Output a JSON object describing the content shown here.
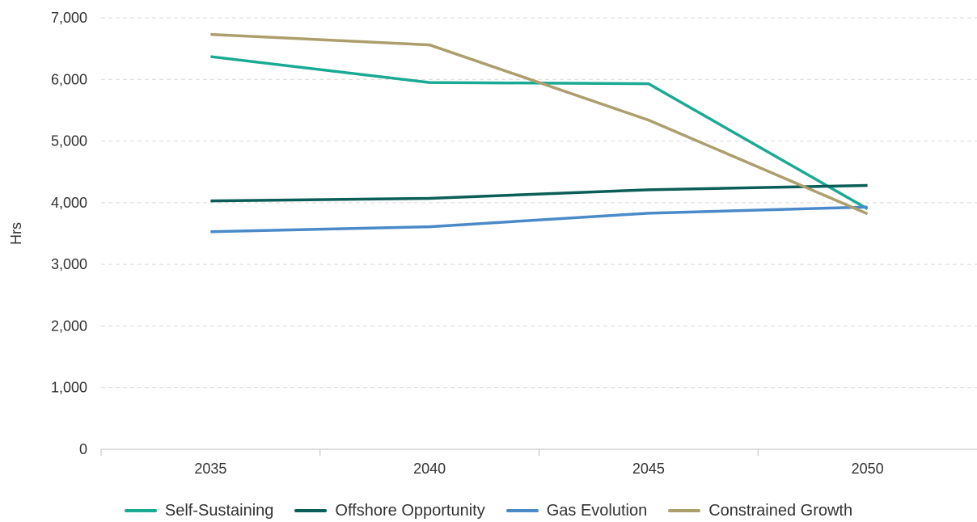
{
  "chart_data": {
    "type": "line",
    "title": "",
    "xlabel": "",
    "ylabel": "Hrs",
    "categories": [
      "2035",
      "2040",
      "2045",
      "2050"
    ],
    "ylim": [
      0,
      7000
    ],
    "yticks": [
      "0",
      "1,000",
      "2,000",
      "3,000",
      "4,000",
      "5,000",
      "6,000",
      "7,000"
    ],
    "grid": true,
    "legend_position": "bottom",
    "series": [
      {
        "name": "Self-Sustaining",
        "color": "#1aaa94",
        "values": [
          6370,
          5950,
          5930,
          3900
        ]
      },
      {
        "name": "Offshore Opportunity",
        "color": "#0b5e57",
        "values": [
          4030,
          4070,
          4210,
          4280
        ]
      },
      {
        "name": "Gas Evolution",
        "color": "#4a8ac8",
        "values": [
          3530,
          3610,
          3830,
          3930
        ]
      },
      {
        "name": "Constrained Growth",
        "color": "#ad9e6d",
        "values": [
          6730,
          6560,
          5340,
          3820
        ]
      }
    ]
  }
}
